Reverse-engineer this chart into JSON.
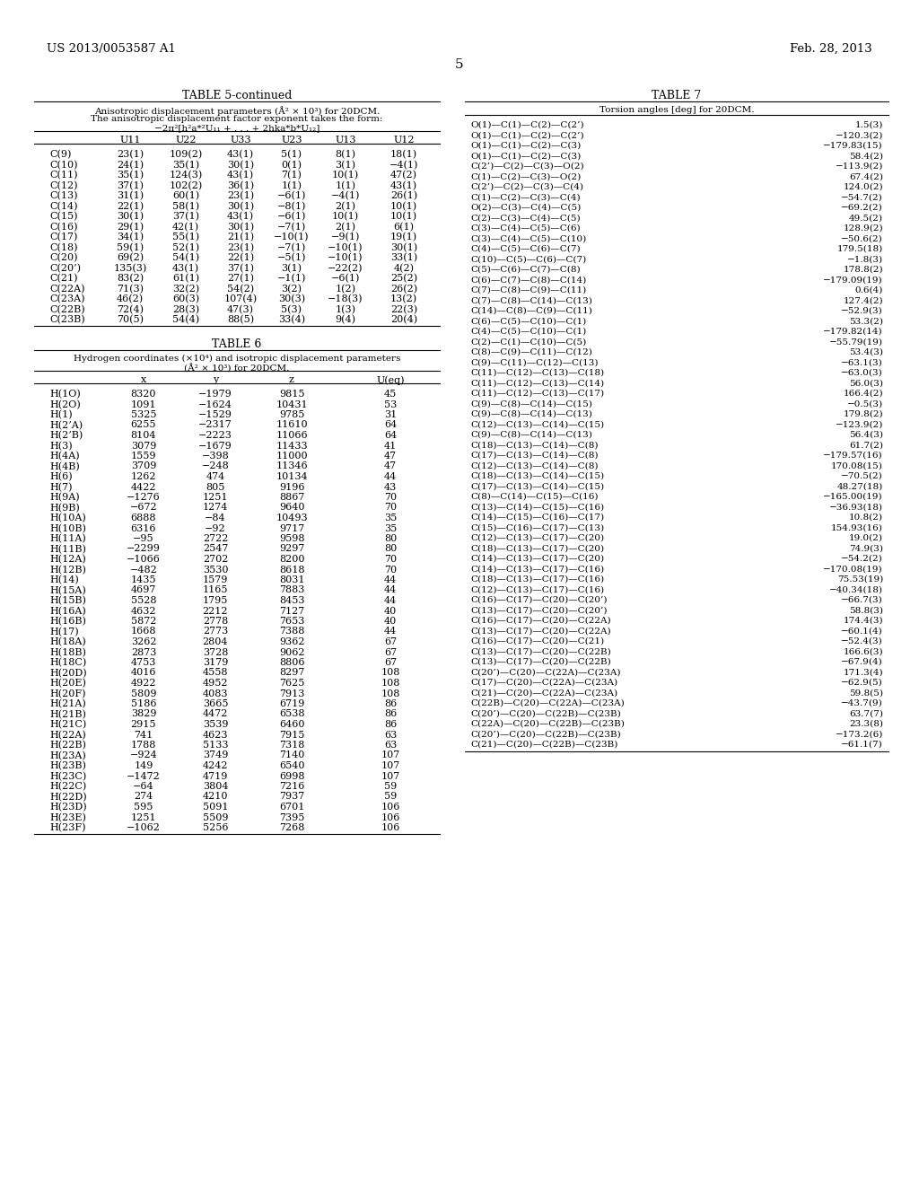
{
  "header_left": "US 2013/0053587 A1",
  "header_right": "Feb. 28, 2013",
  "page_number": "5",
  "background_color": "#ffffff",
  "text_color": "#000000",
  "table5_title": "TABLE 5-continued",
  "table5_subtitle1": "Anisotropic displacement parameters (Å² × 10³) for 20DCM.",
  "table5_subtitle2": "The anisotropic displacement factor exponent takes the form:",
  "table5_subtitle3": "−2π²[h²a*²U₁₁ + . . . + 2hka*b*U₁₂]",
  "table5_cols": [
    "",
    "U11",
    "U22",
    "U33",
    "U23",
    "U13",
    "U12"
  ],
  "table5_rows": [
    [
      "C(9)",
      "23(1)",
      "109(2)",
      "43(1)",
      "5(1)",
      "8(1)",
      "18(1)"
    ],
    [
      "C(10)",
      "24(1)",
      "35(1)",
      "30(1)",
      "0(1)",
      "3(1)",
      "−4(1)"
    ],
    [
      "C(11)",
      "35(1)",
      "124(3)",
      "43(1)",
      "7(1)",
      "10(1)",
      "47(2)"
    ],
    [
      "C(12)",
      "37(1)",
      "102(2)",
      "36(1)",
      "1(1)",
      "1(1)",
      "43(1)"
    ],
    [
      "C(13)",
      "31(1)",
      "60(1)",
      "23(1)",
      "−6(1)",
      "−4(1)",
      "26(1)"
    ],
    [
      "C(14)",
      "22(1)",
      "58(1)",
      "30(1)",
      "−8(1)",
      "2(1)",
      "10(1)"
    ],
    [
      "C(15)",
      "30(1)",
      "37(1)",
      "43(1)",
      "−6(1)",
      "10(1)",
      "10(1)"
    ],
    [
      "C(16)",
      "29(1)",
      "42(1)",
      "30(1)",
      "−7(1)",
      "2(1)",
      "6(1)"
    ],
    [
      "C(17)",
      "34(1)",
      "55(1)",
      "21(1)",
      "−10(1)",
      "−9(1)",
      "19(1)"
    ],
    [
      "C(18)",
      "59(1)",
      "52(1)",
      "23(1)",
      "−7(1)",
      "−10(1)",
      "30(1)"
    ],
    [
      "C(20)",
      "69(2)",
      "54(1)",
      "22(1)",
      "−5(1)",
      "−10(1)",
      "33(1)"
    ],
    [
      "C(20’)",
      "135(3)",
      "43(1)",
      "37(1)",
      "3(1)",
      "−22(2)",
      "4(2)"
    ],
    [
      "C(21)",
      "83(2)",
      "61(1)",
      "27(1)",
      "−1(1)",
      "−6(1)",
      "25(2)"
    ],
    [
      "C(22A)",
      "71(3)",
      "32(2)",
      "54(2)",
      "3(2)",
      "1(2)",
      "26(2)"
    ],
    [
      "C(23A)",
      "46(2)",
      "60(3)",
      "107(4)",
      "30(3)",
      "−18(3)",
      "13(2)"
    ],
    [
      "C(22B)",
      "72(4)",
      "28(3)",
      "47(3)",
      "5(3)",
      "1(3)",
      "22(3)"
    ],
    [
      "C(23B)",
      "70(5)",
      "54(4)",
      "88(5)",
      "33(4)",
      "9(4)",
      "20(4)"
    ]
  ],
  "table6_title": "TABLE 6",
  "table6_subtitle1": "Hydrogen coordinates (×10⁴) and isotropic displacement parameters",
  "table6_subtitle2": "(Å² × 10³) for 20DCM.",
  "table6_cols": [
    "",
    "x",
    "y",
    "z",
    "U(eq)"
  ],
  "table6_rows": [
    [
      "H(1O)",
      "8320",
      "−1979",
      "9815",
      "45"
    ],
    [
      "H(2O)",
      "1091",
      "−1624",
      "10431",
      "53"
    ],
    [
      "H(1)",
      "5325",
      "−1529",
      "9785",
      "31"
    ],
    [
      "H(2’A)",
      "6255",
      "−2317",
      "11610",
      "64"
    ],
    [
      "H(2’B)",
      "8104",
      "−2223",
      "11066",
      "64"
    ],
    [
      "H(3)",
      "3079",
      "−1679",
      "11433",
      "41"
    ],
    [
      "H(4A)",
      "1559",
      "−398",
      "11000",
      "47"
    ],
    [
      "H(4B)",
      "3709",
      "−248",
      "11346",
      "47"
    ],
    [
      "H(6)",
      "1262",
      "474",
      "10134",
      "44"
    ],
    [
      "H(7)",
      "4422",
      "805",
      "9196",
      "43"
    ],
    [
      "H(9A)",
      "−1276",
      "1251",
      "8867",
      "70"
    ],
    [
      "H(9B)",
      "−672",
      "1274",
      "9640",
      "70"
    ],
    [
      "H(10A)",
      "6888",
      "−84",
      "10493",
      "35"
    ],
    [
      "H(10B)",
      "6316",
      "−92",
      "9717",
      "35"
    ],
    [
      "H(11A)",
      "−95",
      "2722",
      "9598",
      "80"
    ],
    [
      "H(11B)",
      "−2299",
      "2547",
      "9297",
      "80"
    ],
    [
      "H(12A)",
      "−1066",
      "2702",
      "8200",
      "70"
    ],
    [
      "H(12B)",
      "−482",
      "3530",
      "8618",
      "70"
    ],
    [
      "H(14)",
      "1435",
      "1579",
      "8031",
      "44"
    ],
    [
      "H(15A)",
      "4697",
      "1165",
      "7883",
      "44"
    ],
    [
      "H(15B)",
      "5528",
      "1795",
      "8453",
      "44"
    ],
    [
      "H(16A)",
      "4632",
      "2212",
      "7127",
      "40"
    ],
    [
      "H(16B)",
      "5872",
      "2778",
      "7653",
      "40"
    ],
    [
      "H(17)",
      "1668",
      "2773",
      "7388",
      "44"
    ],
    [
      "H(18A)",
      "3262",
      "2804",
      "9362",
      "67"
    ],
    [
      "H(18B)",
      "2873",
      "3728",
      "9062",
      "67"
    ],
    [
      "H(18C)",
      "4753",
      "3179",
      "8806",
      "67"
    ],
    [
      "H(20D)",
      "4016",
      "4558",
      "8297",
      "108"
    ],
    [
      "H(20E)",
      "4922",
      "4952",
      "7625",
      "108"
    ],
    [
      "H(20F)",
      "5809",
      "4083",
      "7913",
      "108"
    ],
    [
      "H(21A)",
      "5186",
      "3665",
      "6719",
      "86"
    ],
    [
      "H(21B)",
      "3829",
      "4472",
      "6538",
      "86"
    ],
    [
      "H(21C)",
      "2915",
      "3539",
      "6460",
      "86"
    ],
    [
      "H(22A)",
      "741",
      "4623",
      "7915",
      "63"
    ],
    [
      "H(22B)",
      "1788",
      "5133",
      "7318",
      "63"
    ],
    [
      "H(23A)",
      "−924",
      "3749",
      "7140",
      "107"
    ],
    [
      "H(23B)",
      "149",
      "4242",
      "6540",
      "107"
    ],
    [
      "H(23C)",
      "−1472",
      "4719",
      "6998",
      "107"
    ],
    [
      "H(22C)",
      "−64",
      "3804",
      "7216",
      "59"
    ],
    [
      "H(22D)",
      "274",
      "4210",
      "7937",
      "59"
    ],
    [
      "H(23D)",
      "595",
      "5091",
      "6701",
      "106"
    ],
    [
      "H(23E)",
      "1251",
      "5509",
      "7395",
      "106"
    ],
    [
      "H(23F)",
      "−1062",
      "5256",
      "7268",
      "106"
    ]
  ],
  "table7_title": "TABLE 7",
  "table7_subtitle": "Torsion angles [deg] for 20DCM.",
  "table7_rows": [
    [
      "O(1)—C(1)—C(2)—C(2’)",
      "1.5(3)"
    ],
    [
      "O(1)—C(1)—C(2)—C(2’)",
      "−120.3(2)"
    ],
    [
      "O(1)—C(1)—C(2)—C(3)",
      "−179.83(15)"
    ],
    [
      "O(1)—C(1)—C(2)—C(3)",
      "58.4(2)"
    ],
    [
      "C(2’)—C(2)—C(3)—O(2)",
      "−113.9(2)"
    ],
    [
      "C(1)—C(2)—C(3)—O(2)",
      "67.4(2)"
    ],
    [
      "C(2’)—C(2)—C(3)—C(4)",
      "124.0(2)"
    ],
    [
      "C(1)—C(2)—C(3)—C(4)",
      "−54.7(2)"
    ],
    [
      "O(2)—C(3)—C(4)—C(5)",
      "−69.2(2)"
    ],
    [
      "C(2)—C(3)—C(4)—C(5)",
      "49.5(2)"
    ],
    [
      "C(3)—C(4)—C(5)—C(6)",
      "128.9(2)"
    ],
    [
      "C(3)—C(4)—C(5)—C(10)",
      "−50.6(2)"
    ],
    [
      "C(4)—C(5)—C(6)—C(7)",
      "179.5(18)"
    ],
    [
      "C(10)—C(5)—C(6)—C(7)",
      "−1.8(3)"
    ],
    [
      "C(5)—C(6)—C(7)—C(8)",
      "178.8(2)"
    ],
    [
      "C(6)—C(7)—C(8)—C(14)",
      "−179.09(19)"
    ],
    [
      "C(7)—C(8)—C(9)—C(11)",
      "0.6(4)"
    ],
    [
      "C(7)—C(8)—C(14)—C(13)",
      "127.4(2)"
    ],
    [
      "C(14)—C(8)—C(9)—C(11)",
      "−52.9(3)"
    ],
    [
      "C(6)—C(5)—C(10)—C(1)",
      "53.3(2)"
    ],
    [
      "C(4)—C(5)—C(10)—C(1)",
      "−179.82(14)"
    ],
    [
      "C(2)—C(1)—C(10)—C(5)",
      "−55.79(19)"
    ],
    [
      "C(8)—C(9)—C(11)—C(12)",
      "53.4(3)"
    ],
    [
      "C(9)—C(11)—C(12)—C(13)",
      "−63.1(3)"
    ],
    [
      "C(11)—C(12)—C(13)—C(18)",
      "−63.0(3)"
    ],
    [
      "C(11)—C(12)—C(13)—C(14)",
      "56.0(3)"
    ],
    [
      "C(11)—C(12)—C(13)—C(17)",
      "166.4(2)"
    ],
    [
      "C(9)—C(8)—C(14)—C(15)",
      "−0.5(3)"
    ],
    [
      "C(9)—C(8)—C(14)—C(13)",
      "179.8(2)"
    ],
    [
      "C(12)—C(13)—C(14)—C(15)",
      "−123.9(2)"
    ],
    [
      "C(9)—C(8)—C(14)—C(13)",
      "56.4(3)"
    ],
    [
      "C(18)—C(13)—C(14)—C(8)",
      "61.7(2)"
    ],
    [
      "C(17)—C(13)—C(14)—C(8)",
      "−179.57(16)"
    ],
    [
      "C(12)—C(13)—C(14)—C(8)",
      "170.08(15)"
    ],
    [
      "C(18)—C(13)—C(14)—C(15)",
      "−70.5(2)"
    ],
    [
      "C(17)—C(13)—C(14)—C(15)",
      "48.27(18)"
    ],
    [
      "C(8)—C(14)—C(15)—C(16)",
      "−165.00(19)"
    ],
    [
      "C(13)—C(14)—C(15)—C(16)",
      "−36.93(18)"
    ],
    [
      "C(14)—C(15)—C(16)—C(17)",
      "10.8(2)"
    ],
    [
      "C(15)—C(16)—C(17)—C(13)",
      "154.93(16)"
    ],
    [
      "C(12)—C(13)—C(17)—C(20)",
      "19.0(2)"
    ],
    [
      "C(18)—C(13)—C(17)—C(20)",
      "74.9(3)"
    ],
    [
      "C(14)—C(13)—C(17)—C(20)",
      "−54.2(2)"
    ],
    [
      "C(14)—C(13)—C(17)—C(16)",
      "−170.08(19)"
    ],
    [
      "C(18)—C(13)—C(17)—C(16)",
      "75.53(19)"
    ],
    [
      "C(12)—C(13)—C(17)—C(16)",
      "−40.34(18)"
    ],
    [
      "C(16)—C(17)—C(20)—C(20’)",
      "−66.7(3)"
    ],
    [
      "C(13)—C(17)—C(20)—C(20’)",
      "58.8(3)"
    ],
    [
      "C(16)—C(17)—C(20)—C(22A)",
      "174.4(3)"
    ],
    [
      "C(13)—C(17)—C(20)—C(22A)",
      "−60.1(4)"
    ],
    [
      "C(16)—C(17)—C(20)—C(21)",
      "−52.4(3)"
    ],
    [
      "C(13)—C(17)—C(20)—C(22B)",
      "166.6(3)"
    ],
    [
      "C(13)—C(17)—C(20)—C(22B)",
      "−67.9(4)"
    ],
    [
      "C(20’)—C(20)—C(22A)—C(23A)",
      "171.3(4)"
    ],
    [
      "C(17)—C(20)—C(22A)—C(23A)",
      "−62.9(5)"
    ],
    [
      "C(21)—C(20)—C(22A)—C(23A)",
      "59.8(5)"
    ],
    [
      "C(22B)—C(20)—C(22A)—C(23A)",
      "−43.7(9)"
    ],
    [
      "C(20’)—C(20)—C(22B)—C(23B)",
      "63.7(7)"
    ],
    [
      "C(22A)—C(20)—C(22B)—C(23B)",
      "23.3(8)"
    ],
    [
      "C(20’)—C(20)—C(22B)—C(23B)",
      "−173.2(6)"
    ],
    [
      "C(21)—C(20)—C(22B)—C(23B)",
      "−61.1(7)"
    ]
  ]
}
